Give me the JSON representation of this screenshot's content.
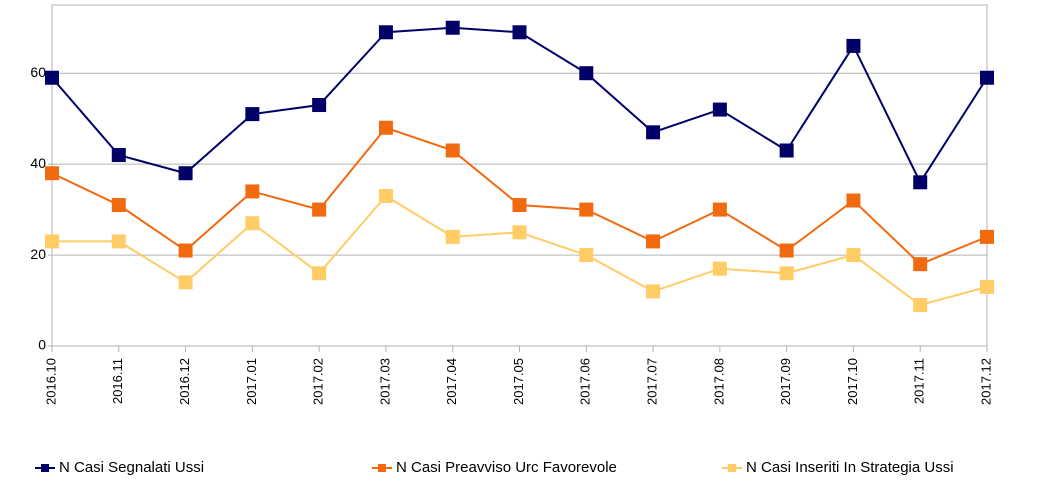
{
  "chart_data": {
    "type": "line",
    "categories": [
      "2016.10",
      "2016.11",
      "2016.12",
      "2017.01",
      "2017.02",
      "2017.03",
      "2017.04",
      "2017.05",
      "2017.06",
      "2017.07",
      "2017.08",
      "2017.09",
      "2017.10",
      "2017.11",
      "2017.12"
    ],
    "series": [
      {
        "name": "N Casi Segnalati Ussi",
        "color": "#000066",
        "values": [
          59,
          42,
          38,
          51,
          53,
          69,
          70,
          69,
          60,
          47,
          52,
          43,
          66,
          36,
          59
        ]
      },
      {
        "name": "N Casi Preavviso Urc Favorevole",
        "color": "#f26a10",
        "values": [
          38,
          31,
          21,
          34,
          30,
          48,
          43,
          31,
          30,
          23,
          30,
          21,
          32,
          18,
          24
        ]
      },
      {
        "name": "N Casi Inseriti In Strategia Ussi",
        "color": "#ffcc66",
        "values": [
          23,
          23,
          14,
          27,
          16,
          33,
          24,
          25,
          20,
          12,
          17,
          16,
          20,
          9,
          13
        ]
      }
    ],
    "ylim": [
      0,
      75
    ],
    "yticks": [
      0,
      20,
      40,
      60
    ],
    "grid": true,
    "legend": "bottom"
  }
}
